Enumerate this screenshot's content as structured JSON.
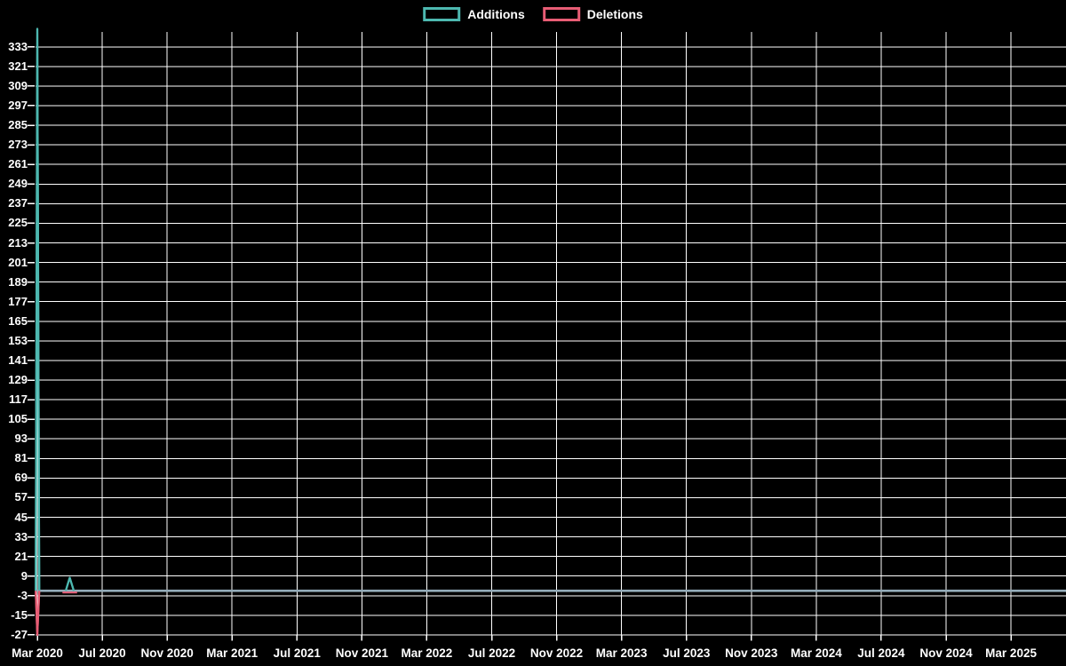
{
  "chart_data": {
    "type": "line",
    "title": "",
    "background_color": "#000000",
    "grid": true,
    "grid_color": "#ffffff",
    "text_color": "#ffffff",
    "zero_line_color": "#93abb8",
    "legend_position": "top",
    "legend": [
      {
        "label": "Additions",
        "color": "#4db8b0"
      },
      {
        "label": "Deletions",
        "color": "#e85d75"
      }
    ],
    "y_ticks": [
      333,
      321,
      309,
      297,
      285,
      273,
      261,
      249,
      237,
      225,
      213,
      201,
      189,
      177,
      165,
      153,
      141,
      129,
      117,
      105,
      93,
      81,
      69,
      57,
      45,
      33,
      21,
      9,
      -3,
      -15,
      -27
    ],
    "ylim": [
      -27,
      345
    ],
    "x_tick_labels": [
      "Mar 2020",
      "Jul 2020",
      "Nov 2020",
      "Mar 2021",
      "Jul 2021",
      "Nov 2021",
      "Mar 2022",
      "Jul 2022",
      "Nov 2022",
      "Mar 2023",
      "Jul 2023",
      "Nov 2023",
      "Mar 2024",
      "Jul 2024",
      "Nov 2024",
      "Mar 2025"
    ],
    "x_months_per_tick": 4,
    "xlim_months": [
      -0.1,
      63.4
    ],
    "notable_points": [
      {
        "series": "Additions",
        "x": "Mar 2020",
        "y": 344
      },
      {
        "series": "Additions",
        "x": "May 2020",
        "y": 8
      },
      {
        "series": "Deletions",
        "x": "Mar 2020",
        "y": -27
      }
    ],
    "series": [
      {
        "name": "Additions",
        "color": "#4db8b0",
        "points_month_value": [
          [
            -0.1,
            0
          ],
          [
            0,
            344
          ],
          [
            0.12,
            0
          ],
          [
            1.75,
            0
          ],
          [
            2,
            8
          ],
          [
            2.25,
            0
          ],
          [
            63.4,
            0
          ]
        ]
      },
      {
        "name": "Deletions",
        "color": "#e85d75",
        "points_month_value": [
          [
            -0.1,
            0
          ],
          [
            0,
            -27
          ],
          [
            0.12,
            0
          ],
          [
            63.4,
            0
          ]
        ]
      }
    ]
  }
}
